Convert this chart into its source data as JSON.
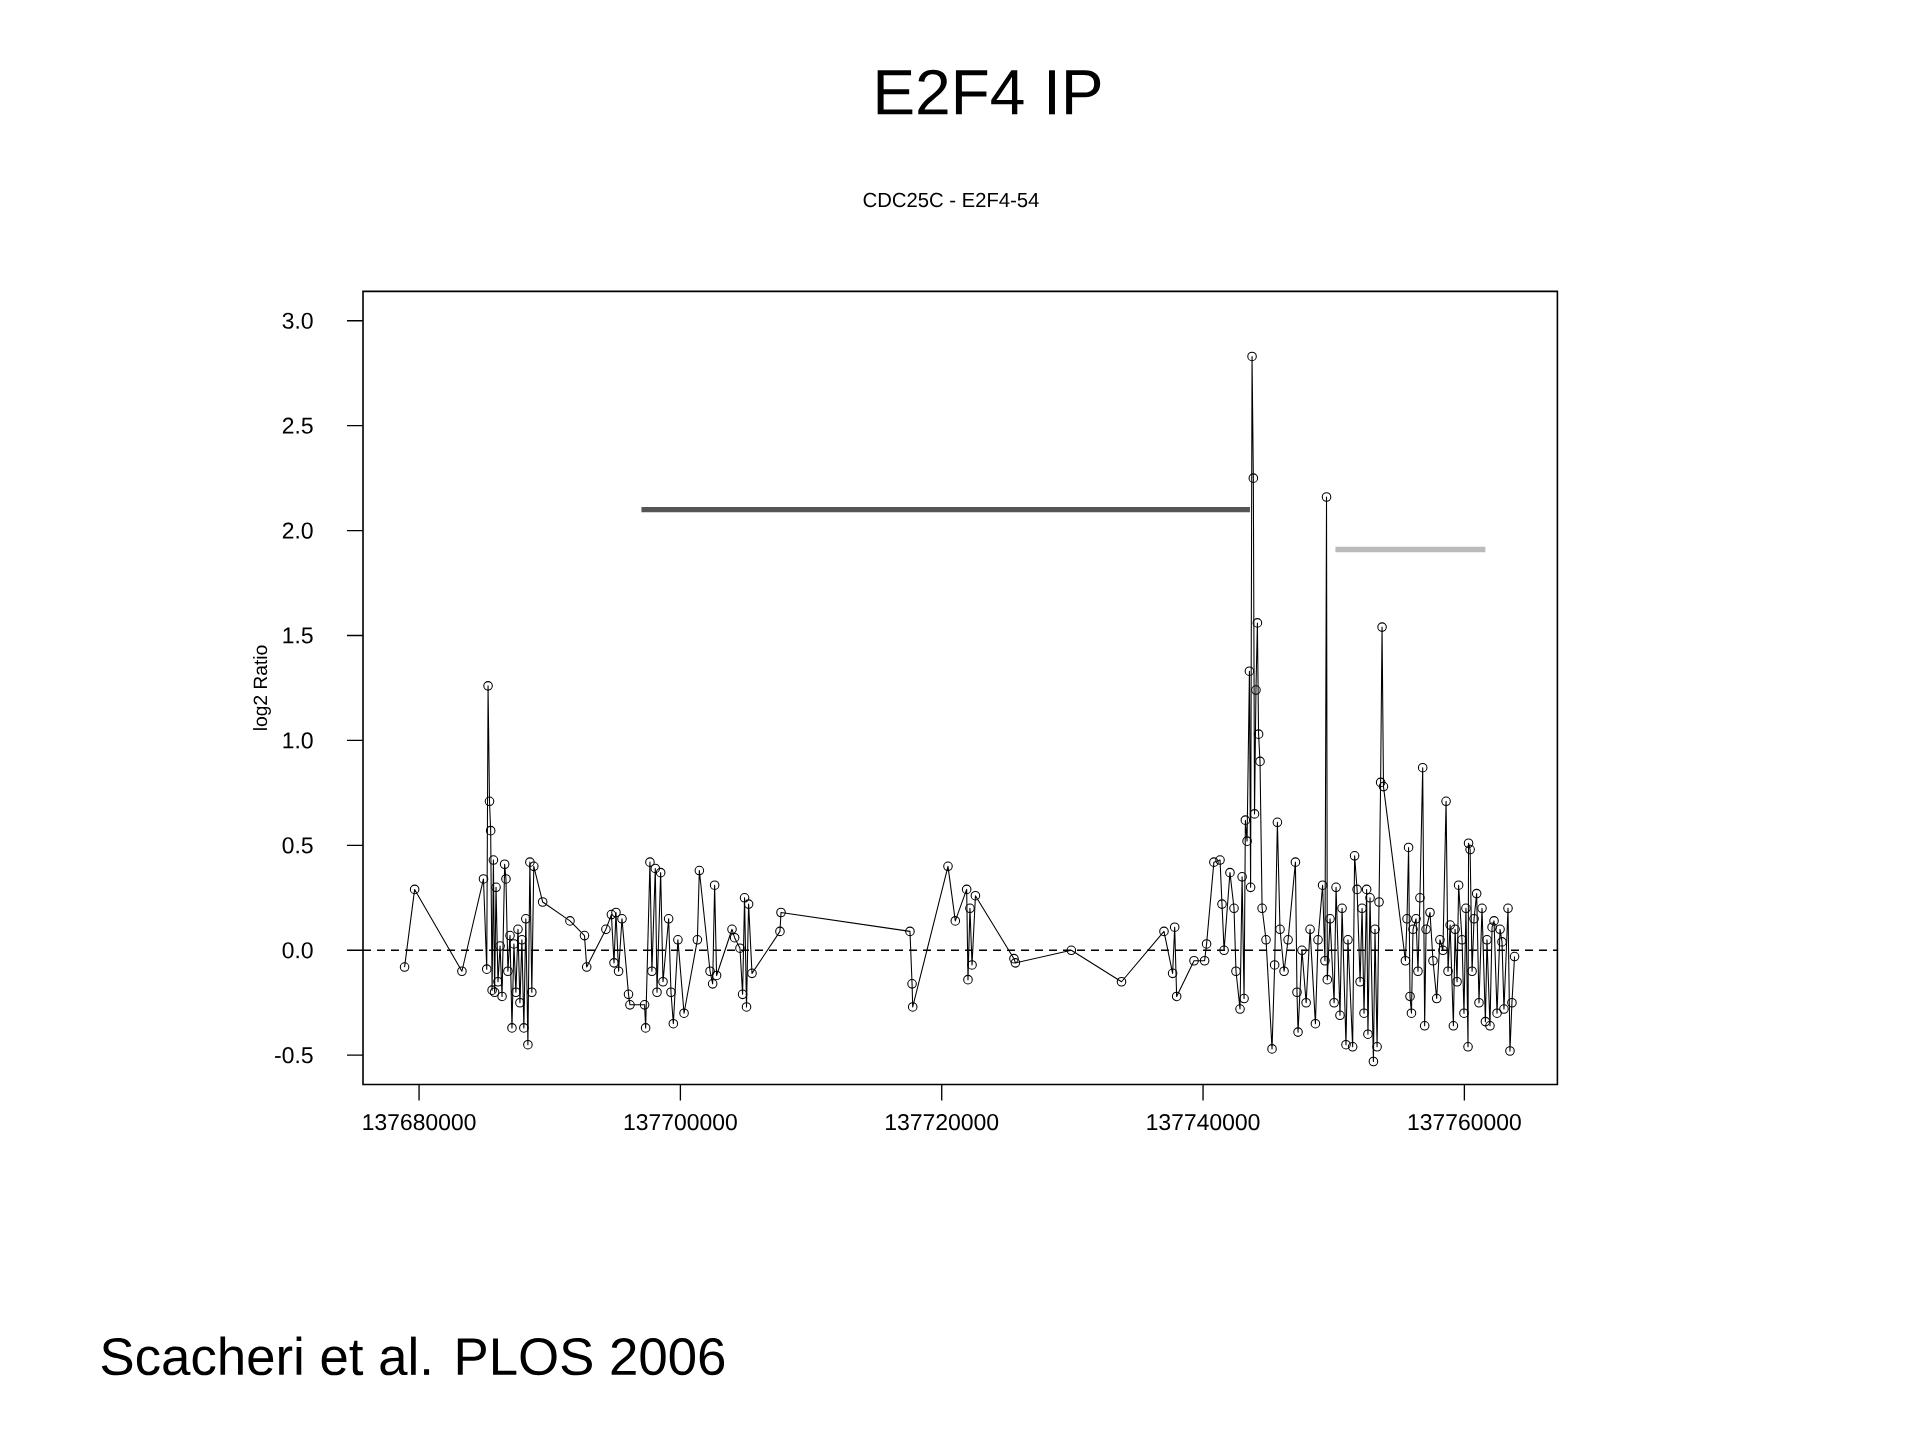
{
  "chart_data": {
    "type": "line",
    "title": "E2F4 IP",
    "subtitle": "CDC25C - E2F4-54",
    "ylabel": "log2 Ratio",
    "annotations": [
      "Scacheri et al. PLOS 2006"
    ],
    "xlim": [
      137675710,
      137767120
    ],
    "ylim": [
      -0.64,
      3.14
    ],
    "xticks": [
      137680000,
      137700000,
      137720000,
      137740000,
      137760000
    ],
    "yticks": [
      -0.5,
      {
        "value": 0,
        "label": "0.0"
      },
      0.5,
      {
        "value": 1,
        "label": "1.0"
      },
      1.5,
      {
        "value": 2,
        "label": "2.0"
      },
      2.5,
      {
        "value": 3,
        "label": "3.0"
      }
    ],
    "marker": "circle",
    "ref_lines": [
      {
        "axis": "y",
        "value": 0,
        "line_style": "dashed",
        "color": "#000000"
      }
    ],
    "series": [
      {
        "color": "#000000",
        "x": [
          137678890,
          137679660,
          137683280,
          137684930,
          137685180,
          137685280,
          137685390,
          137685480,
          137685590,
          137685690,
          137685780,
          137685890,
          137686040,
          137686200,
          137686350,
          137686550,
          137686650,
          137686800,
          137686960,
          137687110,
          137687260,
          137687410,
          137687570,
          137687720,
          137687870,
          137688020,
          137688170,
          137688330,
          137688480,
          137688630,
          137688780,
          137689460,
          137691550,
          137692660,
          137692830,
          137694300,
          137694720,
          137694920,
          137695070,
          137695270,
          137695530,
          137696030,
          137696140,
          137697260,
          137697340,
          137697670,
          137697820,
          137698080,
          137698210,
          137698490,
          137698670,
          137699100,
          137699280,
          137699460,
          137699810,
          137700280,
          137701300,
          137701450,
          137702270,
          137702470,
          137702620,
          137702770,
          137703950,
          137704150,
          137704560,
          137704760,
          137704910,
          137705060,
          137705220,
          137705480,
          137707620,
          137707700,
          137717570,
          137717730,
          137717780,
          137720480,
          137721040,
          137721910,
          137722010,
          137722160,
          137722320,
          137722580,
          137725530,
          137725640,
          137729920,
          137733760,
          137737010,
          137737670,
          137737830,
          137737980,
          137739310,
          137740120,
          137740270,
          137740830,
          137741300,
          137741450,
          137741610,
          137742060,
          137742370,
          137742520,
          137742830,
          137742990,
          137743140,
          137743240,
          137743370,
          137743550,
          137743640,
          137743750,
          137743850,
          137743940,
          137744050,
          137744160,
          137744250,
          137744360,
          137744520,
          137744820,
          137745280,
          137745480,
          137745690,
          137745890,
          137746200,
          137746510,
          137747070,
          137747190,
          137747270,
          137747570,
          137747890,
          137748190,
          137748600,
          137748800,
          137749150,
          137749330,
          137749450,
          137749510,
          137749720,
          137750030,
          137750180,
          137750480,
          137750640,
          137750940,
          137751090,
          137751450,
          137751600,
          137751790,
          137752020,
          137752170,
          137752320,
          137752520,
          137752620,
          137752780,
          137753040,
          137753160,
          137753320,
          137753470,
          137753590,
          137753700,
          137753810,
          137755490,
          137755610,
          137755730,
          137755840,
          137755950,
          137756070,
          137756300,
          137756450,
          137756600,
          137756810,
          137756960,
          137757070,
          137757370,
          137757600,
          137757880,
          137758130,
          137758360,
          137758600,
          137758750,
          137758910,
          137759160,
          137759290,
          137759440,
          137759560,
          137759820,
          137759970,
          137760120,
          137760280,
          137760320,
          137760440,
          137760590,
          137760740,
          137760940,
          137761120,
          137761350,
          137761610,
          137761730,
          137761960,
          137762120,
          137762270,
          137762500,
          137762730,
          137762880,
          137763030,
          137763340,
          137763490,
          137763640,
          137763840
        ],
        "values": [
          -0.08,
          0.29,
          -0.1,
          0.34,
          -0.09,
          1.26,
          0.71,
          0.57,
          -0.19,
          0.43,
          -0.2,
          0.3,
          -0.15,
          0.02,
          -0.22,
          0.41,
          0.34,
          -0.1,
          0.07,
          -0.37,
          0.03,
          -0.2,
          0.1,
          -0.25,
          0.05,
          -0.37,
          0.15,
          -0.45,
          0.42,
          -0.2,
          0.4,
          0.23,
          0.14,
          0.07,
          -0.08,
          0.1,
          0.17,
          -0.06,
          0.18,
          -0.1,
          0.15,
          -0.21,
          -0.26,
          -0.26,
          -0.37,
          0.42,
          -0.1,
          0.39,
          -0.2,
          0.37,
          -0.15,
          0.15,
          -0.2,
          -0.35,
          0.05,
          -0.3,
          0.05,
          0.38,
          -0.1,
          -0.16,
          0.31,
          -0.12,
          0.1,
          0.06,
          0.01,
          -0.21,
          0.25,
          -0.27,
          0.22,
          -0.11,
          0.09,
          0.18,
          0.09,
          -0.16,
          -0.27,
          0.4,
          0.14,
          0.29,
          -0.14,
          0.2,
          -0.07,
          0.26,
          -0.04,
          -0.06,
          0.0,
          -0.15,
          0.09,
          -0.11,
          0.11,
          -0.22,
          -0.05,
          -0.05,
          0.03,
          0.42,
          0.43,
          0.22,
          0.0,
          0.37,
          0.2,
          -0.1,
          -0.28,
          0.35,
          -0.23,
          0.62,
          0.52,
          1.33,
          0.3,
          2.83,
          2.25,
          0.65,
          1.24,
          1.56,
          1.03,
          0.9,
          0.2,
          0.05,
          -0.47,
          -0.07,
          0.61,
          0.1,
          -0.1,
          0.05,
          0.42,
          -0.2,
          -0.39,
          0.0,
          -0.25,
          0.1,
          -0.35,
          0.05,
          0.31,
          -0.05,
          2.16,
          -0.14,
          0.15,
          -0.25,
          0.3,
          -0.31,
          0.2,
          -0.45,
          0.05,
          -0.46,
          0.45,
          0.29,
          -0.15,
          0.2,
          -0.3,
          0.29,
          -0.4,
          0.25,
          -0.53,
          0.1,
          -0.46,
          0.23,
          0.8,
          1.54,
          0.78,
          -0.05,
          0.15,
          0.49,
          -0.22,
          -0.3,
          0.1,
          0.15,
          -0.1,
          0.25,
          0.87,
          -0.36,
          0.1,
          0.18,
          -0.05,
          -0.23,
          0.05,
          0.0,
          0.71,
          -0.1,
          0.12,
          -0.36,
          0.1,
          -0.15,
          0.31,
          0.05,
          -0.3,
          0.2,
          -0.46,
          0.51,
          0.48,
          -0.1,
          0.15,
          0.27,
          -0.25,
          0.2,
          -0.34,
          0.05,
          -0.36,
          0.11,
          0.14,
          -0.3,
          0.1,
          0.04,
          -0.28,
          0.2,
          -0.48,
          -0.25,
          -0.03
        ]
      },
      {
        "type": "line",
        "marker": "none",
        "color": "#555555",
        "x": [
          137697020,
          137743590
        ],
        "values": [
          2.1,
          2.1
        ]
      },
      {
        "type": "line",
        "marker": "none",
        "color": "#bbbbbb",
        "x": [
          137750130,
          137761610
        ],
        "values": [
          1.91,
          1.91
        ]
      }
    ]
  }
}
